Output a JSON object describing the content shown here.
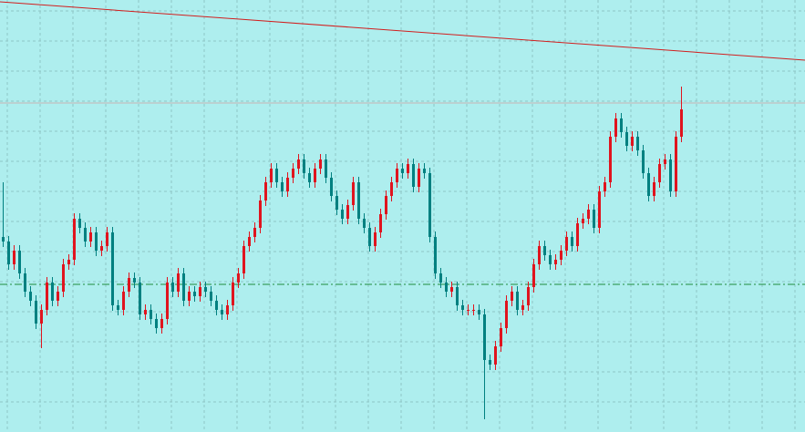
{
  "chart_data": {
    "type": "candlestick",
    "up_color": "#e0141e",
    "down_color": "#008080",
    "ylim": [
      0,
      474
    ],
    "yticks": [
      33,
      66,
      99,
      132,
      165,
      198,
      231,
      264,
      297,
      330,
      363,
      396,
      429,
      462
    ],
    "grid": true,
    "open": [
      214,
      209,
      184,
      199,
      174,
      154,
      144,
      119,
      134,
      164,
      144,
      154,
      184,
      189,
      234,
      224,
      209,
      219,
      199,
      204,
      219,
      139,
      134,
      154,
      169,
      164,
      129,
      134,
      124,
      114,
      124,
      164,
      154,
      174,
      144,
      154,
      149,
      159,
      154,
      144,
      134,
      129,
      139,
      164,
      174,
      204,
      214,
      224,
      254,
      274,
      289,
      274,
      264,
      279,
      289,
      299,
      284,
      274,
      289,
      299,
      279,
      259,
      244,
      234,
      249,
      274,
      234,
      224,
      204,
      219,
      239,
      259,
      274,
      289,
      284,
      294,
      269,
      289,
      284,
      214,
      174,
      164,
      154,
      159,
      139,
      134,
      134,
      134,
      129,
      79,
      74,
      94,
      114,
      144,
      154,
      134,
      139,
      159,
      184,
      204,
      194,
      184,
      189,
      199,
      214,
      204,
      229,
      234,
      244,
      224,
      264,
      274,
      324,
      344,
      329,
      314,
      324,
      309,
      284,
      259,
      274,
      294,
      299,
      264,
      324
    ],
    "high": [
      274,
      215,
      205,
      205,
      180,
      160,
      150,
      140,
      170,
      170,
      160,
      190,
      195,
      240,
      240,
      230,
      225,
      225,
      210,
      225,
      225,
      145,
      160,
      175,
      175,
      170,
      140,
      140,
      130,
      130,
      170,
      170,
      180,
      180,
      160,
      160,
      165,
      165,
      160,
      150,
      140,
      145,
      170,
      180,
      210,
      220,
      230,
      260,
      280,
      295,
      295,
      280,
      285,
      295,
      305,
      305,
      290,
      295,
      305,
      305,
      285,
      265,
      250,
      255,
      280,
      280,
      240,
      230,
      225,
      245,
      265,
      280,
      295,
      295,
      300,
      300,
      295,
      295,
      290,
      220,
      180,
      170,
      165,
      165,
      145,
      140,
      140,
      140,
      135,
      85,
      100,
      120,
      150,
      160,
      160,
      145,
      165,
      190,
      210,
      210,
      200,
      195,
      205,
      220,
      220,
      235,
      240,
      250,
      250,
      270,
      280,
      330,
      350,
      350,
      335,
      330,
      330,
      315,
      290,
      280,
      300,
      305,
      305,
      330,
      379
    ],
    "low": [
      203,
      178,
      178,
      168,
      148,
      138,
      113,
      92,
      128,
      138,
      138,
      148,
      178,
      183,
      218,
      203,
      203,
      193,
      193,
      198,
      133,
      128,
      128,
      148,
      158,
      123,
      123,
      118,
      108,
      108,
      118,
      148,
      148,
      138,
      138,
      143,
      143,
      148,
      138,
      128,
      123,
      123,
      133,
      158,
      168,
      198,
      208,
      218,
      248,
      268,
      268,
      258,
      258,
      273,
      283,
      278,
      268,
      268,
      283,
      273,
      253,
      238,
      228,
      228,
      243,
      228,
      218,
      198,
      198,
      213,
      233,
      253,
      268,
      278,
      278,
      263,
      263,
      278,
      208,
      168,
      158,
      148,
      148,
      133,
      128,
      128,
      128,
      123,
      14,
      68,
      68,
      88,
      108,
      138,
      128,
      128,
      133,
      153,
      178,
      188,
      178,
      178,
      183,
      193,
      198,
      198,
      223,
      228,
      218,
      218,
      258,
      268,
      318,
      323,
      308,
      308,
      303,
      278,
      253,
      253,
      268,
      288,
      258,
      258,
      318
    ],
    "close": [
      209,
      184,
      199,
      174,
      154,
      144,
      119,
      134,
      164,
      144,
      154,
      184,
      189,
      234,
      224,
      209,
      219,
      199,
      204,
      219,
      139,
      134,
      154,
      169,
      164,
      129,
      134,
      124,
      114,
      124,
      164,
      154,
      174,
      144,
      154,
      149,
      159,
      154,
      144,
      134,
      129,
      139,
      164,
      174,
      204,
      214,
      224,
      254,
      274,
      289,
      274,
      264,
      279,
      289,
      299,
      284,
      274,
      289,
      299,
      279,
      259,
      244,
      234,
      249,
      274,
      234,
      224,
      204,
      219,
      239,
      259,
      274,
      289,
      284,
      294,
      269,
      289,
      284,
      214,
      174,
      164,
      154,
      159,
      139,
      134,
      134,
      134,
      129,
      79,
      74,
      94,
      114,
      144,
      154,
      134,
      139,
      159,
      184,
      204,
      194,
      184,
      189,
      199,
      214,
      204,
      229,
      234,
      244,
      224,
      264,
      274,
      324,
      344,
      329,
      314,
      324,
      309,
      284,
      259,
      274,
      294,
      299,
      264,
      324,
      354
    ],
    "level_line": {
      "value": 361,
      "color": "#c8b4b4"
    },
    "dash_line": {
      "value": 162,
      "color": "#1e8c3c"
    },
    "trendline": {
      "values": [
        472,
        408
      ],
      "color": "#d21e1e"
    }
  }
}
